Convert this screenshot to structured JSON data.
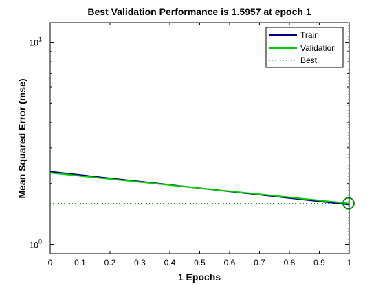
{
  "chart_data": {
    "type": "line",
    "title": "Best Validation Performance is 1.5957 at epoch 1",
    "xlabel": "1 Epochs",
    "ylabel": "Mean Squared Error  (mse)",
    "xlim": [
      0,
      1
    ],
    "ylim": [
      0.9,
      12.5
    ],
    "yscale": "log",
    "grid": false,
    "legend_position": "top-right",
    "x_ticks": [
      0,
      0.1,
      0.2,
      0.3,
      0.4,
      0.5,
      0.6,
      0.7,
      0.8,
      0.9,
      1
    ],
    "x_tick_labels": [
      "0",
      "0.1",
      "0.2",
      "0.3",
      "0.4",
      "0.5",
      "0.6",
      "0.7",
      "0.8",
      "0.9",
      "1"
    ],
    "y_major_ticks": [
      {
        "value": 1,
        "base": "10",
        "exp": "0"
      },
      {
        "value": 10,
        "base": "10",
        "exp": "1"
      }
    ],
    "series": [
      {
        "name": "Train",
        "x": [
          0,
          1
        ],
        "y": [
          2.29,
          1.575
        ],
        "color": "#00007f"
      },
      {
        "name": "Validation",
        "x": [
          0,
          1
        ],
        "y": [
          2.26,
          1.5957
        ],
        "color": "#00cc00"
      },
      {
        "name": "Best",
        "x": [
          0,
          1
        ],
        "y": [
          1.5957,
          1.5957
        ],
        "color": "#008800",
        "style": "dotted"
      }
    ],
    "best_epoch": 1,
    "best_value": 1.5957
  }
}
